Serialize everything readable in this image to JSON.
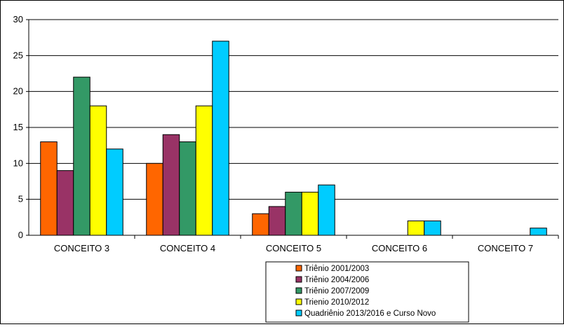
{
  "chart_data": {
    "type": "bar",
    "title": "",
    "xlabel": "",
    "ylabel": "",
    "ylim": [
      0,
      30
    ],
    "yticks": [
      0,
      5,
      10,
      15,
      20,
      25,
      30
    ],
    "grid": true,
    "legend_position": "bottom-right",
    "categories": [
      "CONCEITO 3",
      "CONCEITO 4",
      "CONCEITO 5",
      "CONCEITO 6",
      "CONCEITO 7"
    ],
    "series": [
      {
        "name": "Triênio 2001/2003",
        "color": "#ff6600",
        "values": [
          13,
          10,
          3,
          0,
          0
        ]
      },
      {
        "name": "Triênio 2004/2006",
        "color": "#993366",
        "values": [
          9,
          14,
          4,
          0,
          0
        ]
      },
      {
        "name": "Triênio 2007/2009",
        "color": "#339966",
        "values": [
          22,
          13,
          6,
          0,
          0
        ]
      },
      {
        "name": "Trienio 2010/2012",
        "color": "#ffff00",
        "values": [
          18,
          18,
          6,
          2,
          0
        ]
      },
      {
        "name": "Quadriênio 2013/2016 e Curso Novo",
        "color": "#00ccff",
        "values": [
          12,
          27,
          7,
          2,
          1
        ]
      }
    ]
  }
}
